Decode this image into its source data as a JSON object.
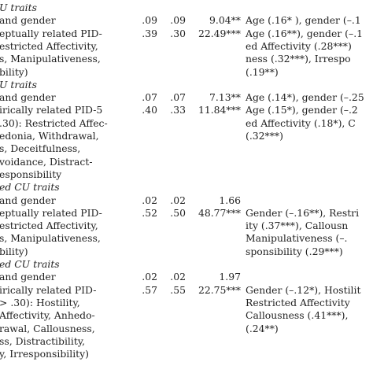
{
  "rows": [
    {
      "pred": "U traits",
      "italic": true
    },
    {
      "pred": "and gender",
      "r2": ".09",
      "adj": ".09",
      "f": "9.04**",
      "coef": "Age (.16* ), gender (–.1"
    },
    {
      "pred": "eptually related PID-",
      "r2": ".39",
      "adj": ".30",
      "f": "22.49***",
      "coef": "Age (.16**), gender (–.1"
    },
    {
      "pred": "estricted Affectivity,",
      "coef": "ed Affectivity (.28***)"
    },
    {
      "pred": "s, Manipulativeness,",
      "coef": "ness (.32***), Irrespo"
    },
    {
      "pred": "bility)",
      "coef": "(.19**)"
    },
    {
      "pred": "U traits",
      "italic": true
    },
    {
      "pred": "and gender",
      "r2": ".07",
      "adj": ".07",
      "f": "7.13**",
      "coef": "Age (.14*), gender (–.25"
    },
    {
      "pred": "irically related PID-5",
      "r2": ".40",
      "adj": ".33",
      "f": "11.84***",
      "coef": "Age (.15*), gender (–.2"
    },
    {
      "pred": ".30): Restricted Affec-",
      "coef": "ed Affectivity (.18*), C"
    },
    {
      "pred": "edonia, Withdrawal,",
      "coef": "(.32***)"
    },
    {
      "pred": "s, Deceitfulness,"
    },
    {
      "pred": "voidance, Distract-"
    },
    {
      "pred": "esponsibility"
    },
    {
      "pred": "ed CU traits",
      "italic": true
    },
    {
      "pred": "and gender",
      "r2": ".02",
      "adj": ".02",
      "f": "1.66"
    },
    {
      "pred": "eptually related PID-",
      "r2": ".52",
      "adj": ".50",
      "f": "48.77***",
      "coef": "Gender (–.16**), Restri"
    },
    {
      "pred": "estricted Affectivity,",
      "coef": "ity (.37***), Callousn"
    },
    {
      "pred": "s, Manipulativeness,",
      "coef": "Manipulativeness (–."
    },
    {
      "pred": "bility)",
      "coef": "sponsibility (.29***)"
    },
    {
      "pred": "ed CU traits",
      "italic": true
    },
    {
      "pred": "and gender",
      "r2": ".02",
      "adj": ".02",
      "f": "1.97"
    },
    {
      "pred": "irically related PID-",
      "r2": ".57",
      "adj": ".55",
      "f": "22.75***",
      "coef": "Gender (–.12*), Hostilit"
    },
    {
      "pred": "> .30): Hostility,",
      "coef": "Restricted Affectivity"
    },
    {
      "pred": "Affectivity, Anhedo-",
      "coef": "Callousness (.41***),"
    },
    {
      "pred": "rawal, Callousness,",
      "coef": "(.24**)"
    },
    {
      "pred": "ss, Distractibility,"
    },
    {
      "pred": "y, Irresponsibility)"
    },
    {
      "pred": ""
    }
  ]
}
